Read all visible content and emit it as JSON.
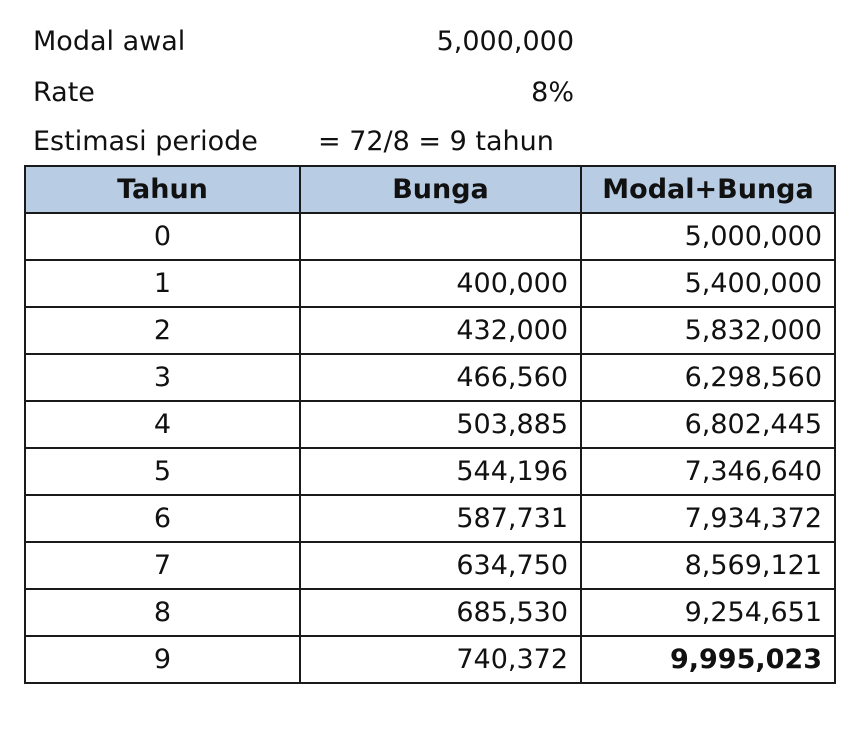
{
  "info": {
    "modal_label": "Modal awal",
    "modal_value": "5,000,000",
    "rate_label": "Rate",
    "rate_value": "8%",
    "periode_label": "Estimasi periode",
    "periode_value": "= 72/8 = 9 tahun"
  },
  "table": {
    "headers": [
      "Tahun",
      "Bunga",
      "Modal+Bunga"
    ],
    "rows": [
      {
        "tahun": "0",
        "bunga": "",
        "total": "5,000,000"
      },
      {
        "tahun": "1",
        "bunga": "400,000",
        "total": "5,400,000"
      },
      {
        "tahun": "2",
        "bunga": "432,000",
        "total": "5,832,000"
      },
      {
        "tahun": "3",
        "bunga": "466,560",
        "total": "6,298,560"
      },
      {
        "tahun": "4",
        "bunga": "503,885",
        "total": "6,802,445"
      },
      {
        "tahun": "5",
        "bunga": "544,196",
        "total": "7,346,640"
      },
      {
        "tahun": "6",
        "bunga": "587,731",
        "total": "7,934,372"
      },
      {
        "tahun": "7",
        "bunga": "634,750",
        "total": "8,569,121"
      },
      {
        "tahun": "8",
        "bunga": "685,530",
        "total": "9,254,651"
      },
      {
        "tahun": "9",
        "bunga": "740,372",
        "total": "9,995,023"
      }
    ]
  },
  "colors": {
    "header_fill": "#b8cce4",
    "border": "#1a1a1a"
  }
}
